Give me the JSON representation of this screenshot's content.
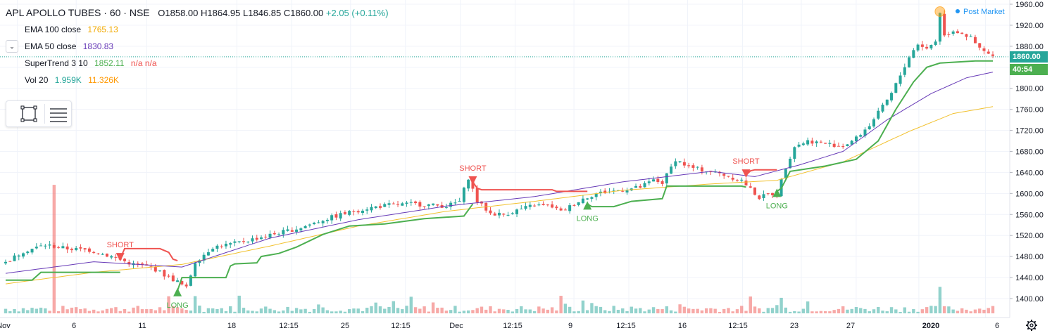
{
  "header": {
    "symbol": "APL APOLLO TUBES · 60 · NSE",
    "open": "O1858.00",
    "high": "H1864.95",
    "low": "L1846.85",
    "close": "C1860.00",
    "change": "+2.05 (+0.11%)"
  },
  "indicators": [
    {
      "name": "EMA 100 close",
      "value": "1765.13"
    },
    {
      "name": "EMA 50 close",
      "value": "1830.83"
    },
    {
      "name": "SuperTrend 3 10",
      "value": "1852.11",
      "na": "n/a n/a"
    },
    {
      "name": "Vol 20",
      "value": "1.959K",
      "value2": "11.326K"
    }
  ],
  "post_market": "Post Market",
  "price_tag": {
    "price": "1860.00",
    "countdown": "40:54"
  },
  "colors": {
    "up": "#26a69a",
    "down": "#ef5350",
    "ema100": "#f2c12e",
    "ema50": "#673ab7",
    "st_up": "#4caf50",
    "st_down": "#ef5350",
    "price_tag_bg": "#26a69a",
    "countdown_bg": "#4caf50"
  },
  "chart_data": {
    "type": "candlestick",
    "title": "APL APOLLO TUBES · 60 · NSE",
    "ylim": [
      1380,
      1968
    ],
    "y_ticks": [
      1400,
      1440,
      1480,
      1520,
      1560,
      1600,
      1640,
      1680,
      1720,
      1760,
      1800,
      1840,
      1880,
      1920,
      1960
    ],
    "x_ticks": [
      "Nov",
      "6",
      "11",
      "18",
      "12:15",
      "25",
      "12:15",
      "Dec",
      "12:15",
      "9",
      "12:15",
      "16",
      "12:15",
      "23",
      "27",
      "2020",
      "6"
    ],
    "x_ticks_bold": [
      "2020"
    ],
    "price_anchors": [
      [
        0,
        1468
      ],
      [
        4,
        1490
      ],
      [
        9,
        1502
      ],
      [
        14,
        1495
      ],
      [
        19,
        1492
      ],
      [
        24,
        1480
      ],
      [
        29,
        1465
      ],
      [
        33,
        1460
      ],
      [
        36,
        1445
      ],
      [
        39,
        1432
      ],
      [
        41,
        1420
      ],
      [
        43,
        1470
      ],
      [
        47,
        1498
      ],
      [
        52,
        1505
      ],
      [
        57,
        1515
      ],
      [
        62,
        1525
      ],
      [
        67,
        1535
      ],
      [
        72,
        1550
      ],
      [
        77,
        1562
      ],
      [
        82,
        1572
      ],
      [
        87,
        1578
      ],
      [
        92,
        1580
      ],
      [
        96,
        1578
      ],
      [
        100,
        1576
      ],
      [
        103,
        1585
      ],
      [
        105,
        1630
      ],
      [
        107,
        1585
      ],
      [
        110,
        1562
      ],
      [
        113,
        1560
      ],
      [
        116,
        1568
      ],
      [
        120,
        1578
      ],
      [
        124,
        1575
      ],
      [
        126,
        1565
      ],
      [
        128,
        1575
      ],
      [
        131,
        1590
      ],
      [
        134,
        1600
      ],
      [
        138,
        1605
      ],
      [
        141,
        1608
      ],
      [
        144,
        1612
      ],
      [
        147,
        1625
      ],
      [
        149,
        1620
      ],
      [
        152,
        1665
      ],
      [
        155,
        1650
      ],
      [
        158,
        1645
      ],
      [
        162,
        1638
      ],
      [
        165,
        1630
      ],
      [
        167,
        1625
      ],
      [
        169,
        1608
      ],
      [
        171,
        1592
      ],
      [
        173,
        1598
      ],
      [
        175,
        1600
      ],
      [
        177,
        1650
      ],
      [
        179,
        1690
      ],
      [
        182,
        1700
      ],
      [
        186,
        1695
      ],
      [
        190,
        1690
      ],
      [
        193,
        1705
      ],
      [
        196,
        1730
      ],
      [
        199,
        1765
      ],
      [
        201,
        1790
      ],
      [
        203,
        1825
      ],
      [
        205,
        1860
      ],
      [
        207,
        1885
      ],
      [
        209,
        1875
      ],
      [
        211,
        1890
      ],
      [
        212,
        1945
      ],
      [
        213,
        1900
      ],
      [
        215,
        1910
      ],
      [
        217,
        1905
      ],
      [
        219,
        1895
      ],
      [
        221,
        1875
      ],
      [
        224,
        1860
      ]
    ],
    "ema100_anchors": [
      [
        0,
        1428
      ],
      [
        20,
        1450
      ],
      [
        40,
        1465
      ],
      [
        60,
        1500
      ],
      [
        80,
        1538
      ],
      [
        100,
        1566
      ],
      [
        120,
        1585
      ],
      [
        140,
        1606
      ],
      [
        160,
        1618
      ],
      [
        175,
        1625
      ],
      [
        190,
        1660
      ],
      [
        205,
        1718
      ],
      [
        215,
        1752
      ],
      [
        224,
        1765.13
      ]
    ],
    "ema50_anchors": [
      [
        0,
        1448
      ],
      [
        20,
        1470
      ],
      [
        40,
        1460
      ],
      [
        60,
        1515
      ],
      [
        80,
        1550
      ],
      [
        100,
        1576
      ],
      [
        120,
        1594
      ],
      [
        140,
        1622
      ],
      [
        160,
        1642
      ],
      [
        170,
        1632
      ],
      [
        180,
        1654
      ],
      [
        190,
        1680
      ],
      [
        200,
        1740
      ],
      [
        210,
        1790
      ],
      [
        218,
        1820
      ],
      [
        224,
        1830.83
      ]
    ],
    "supertrend": [
      {
        "dir": "up",
        "pts": [
          [
            0,
            1435
          ],
          [
            6,
            1435
          ],
          [
            8,
            1450
          ],
          [
            26,
            1450
          ]
        ]
      },
      {
        "dir": "down",
        "pts": [
          [
            26,
            1476
          ],
          [
            27,
            1495
          ],
          [
            35,
            1495
          ],
          [
            37,
            1488
          ],
          [
            38,
            1475
          ],
          [
            39,
            1472
          ]
        ]
      },
      {
        "dir": "up",
        "pts": [
          [
            39,
            1415
          ],
          [
            40,
            1440
          ],
          [
            50,
            1440
          ],
          [
            51,
            1462
          ],
          [
            52,
            1466
          ],
          [
            57,
            1468
          ],
          [
            58,
            1480
          ],
          [
            62,
            1486
          ],
          [
            66,
            1498
          ],
          [
            72,
            1522
          ],
          [
            78,
            1538
          ],
          [
            86,
            1542
          ],
          [
            95,
            1552
          ],
          [
            104,
            1557
          ],
          [
            106,
            1580
          ]
        ]
      },
      {
        "dir": "down",
        "pts": [
          [
            106,
            1622
          ],
          [
            107,
            1610
          ],
          [
            108,
            1607
          ],
          [
            124,
            1607
          ],
          [
            125,
            1604
          ],
          [
            132,
            1604
          ]
        ]
      },
      {
        "dir": "up",
        "pts": [
          [
            132,
            1580
          ],
          [
            133,
            1575
          ],
          [
            138,
            1575
          ],
          [
            140,
            1580
          ],
          [
            142,
            1585
          ],
          [
            149,
            1590
          ],
          [
            150,
            1614
          ],
          [
            167,
            1614
          ],
          [
            168,
            1612
          ]
        ]
      },
      {
        "dir": "down",
        "pts": [
          [
            168,
            1635
          ],
          [
            169,
            1643
          ],
          [
            170,
            1645
          ],
          [
            175,
            1645
          ]
        ]
      },
      {
        "dir": "up",
        "pts": [
          [
            175,
            1604
          ],
          [
            176,
            1610
          ],
          [
            178,
            1642
          ],
          [
            186,
            1652
          ],
          [
            193,
            1665
          ],
          [
            198,
            1700
          ],
          [
            202,
            1760
          ],
          [
            206,
            1812
          ],
          [
            209,
            1840
          ],
          [
            212,
            1848
          ],
          [
            220,
            1852.11
          ],
          [
            224,
            1852.11
          ]
        ]
      }
    ],
    "signals": [
      {
        "type": "SHORT",
        "bar": 26
      },
      {
        "type": "LONG",
        "bar": 39
      },
      {
        "type": "SHORT",
        "bar": 106
      },
      {
        "type": "LONG",
        "bar": 132
      },
      {
        "type": "SHORT",
        "bar": 168
      },
      {
        "type": "LONG",
        "bar": 175
      }
    ],
    "volume_spikes": [
      [
        11,
        7
      ],
      [
        43,
        3
      ],
      [
        53,
        3
      ],
      [
        92,
        3
      ],
      [
        133,
        3
      ],
      [
        212,
        8
      ],
      [
        176,
        3
      ]
    ],
    "last_price": 1860.0
  }
}
